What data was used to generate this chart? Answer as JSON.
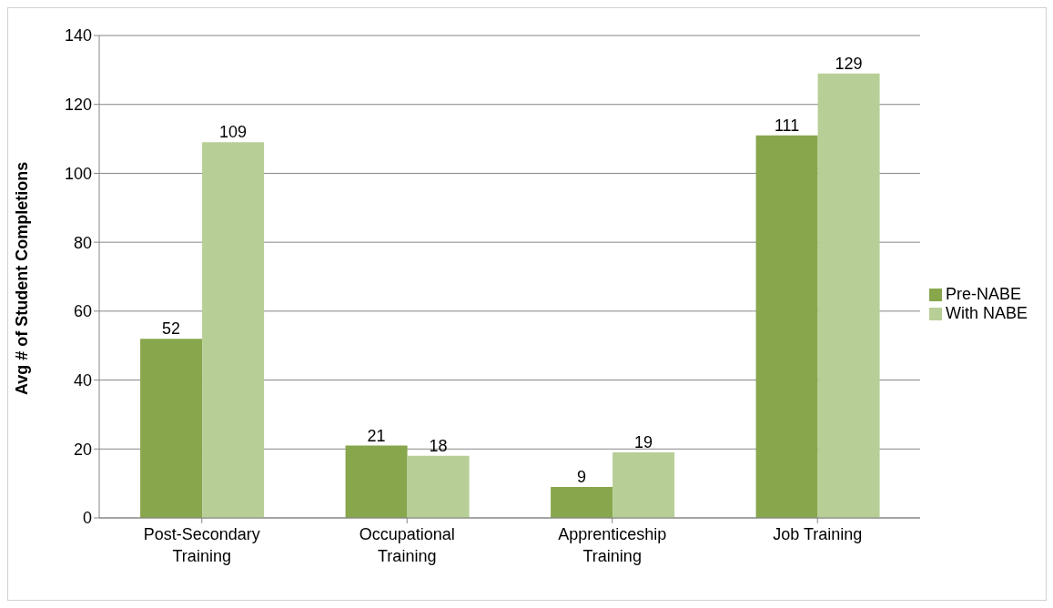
{
  "chart_data": {
    "type": "bar",
    "ylabel": "Avg # of Student Completions",
    "categories": [
      "Post-Secondary Training",
      "Occupational Training",
      "Apprenticeship Training",
      "Job Training"
    ],
    "series": [
      {
        "name": "Pre-NABE",
        "color": "#88a64c",
        "values": [
          52,
          21,
          9,
          111
        ]
      },
      {
        "name": "With NABE",
        "color": "#b7cf96",
        "values": [
          109,
          18,
          19,
          129
        ]
      }
    ],
    "ylim": [
      0,
      140
    ],
    "yticks": [
      0,
      20,
      40,
      60,
      80,
      100,
      120,
      140
    ],
    "grid": "y",
    "legend": "right",
    "data_labels": true
  }
}
